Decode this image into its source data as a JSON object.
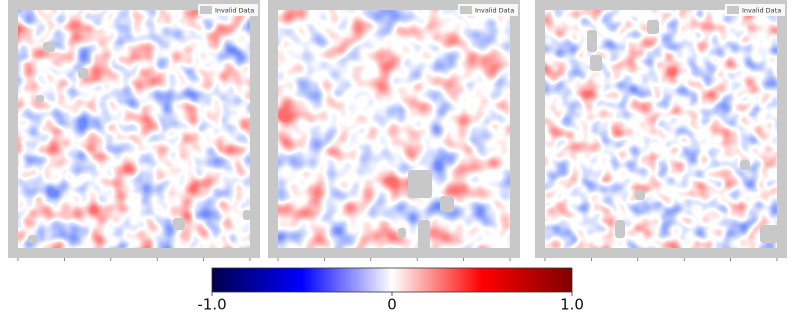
{
  "chart_data": {
    "type": "heatmap",
    "panels": [
      {
        "legend": "Invalid Data"
      },
      {
        "legend": "Invalid Data"
      },
      {
        "legend": "Invalid Data"
      }
    ],
    "colorbar": {
      "clim": [
        -1,
        1
      ],
      "ticks": [
        {
          "value": -1,
          "label": "-1.0"
        },
        0,
        {
          "value": 1,
          "label": "1.0"
        }
      ],
      "colormap": [
        "#00004c",
        "#0000ff",
        "#ffffff",
        "#ff0000",
        "#7f0000"
      ]
    }
  }
}
